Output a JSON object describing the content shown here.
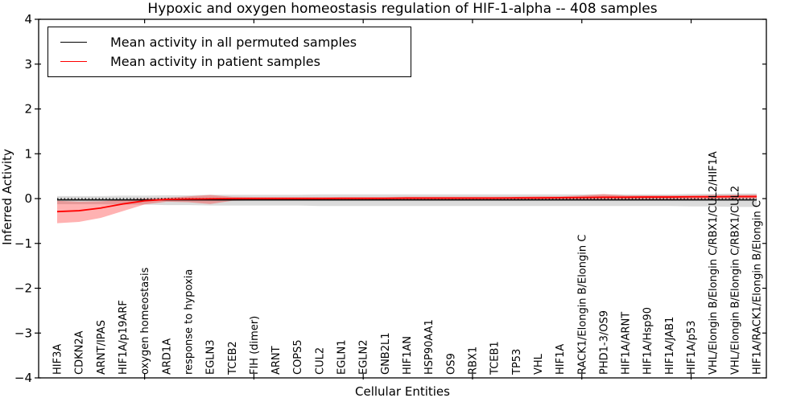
{
  "figure": {
    "title": "Hypoxic and oxygen homeostasis regulation of HIF-1-alpha -- 408 samples",
    "background_color": "#ffffff"
  },
  "legend": {
    "items": [
      {
        "label": "Mean activity in all permuted samples",
        "color": "#000000"
      },
      {
        "label": "Mean activity in patient samples",
        "color": "#ff0000"
      }
    ]
  },
  "chart_data": {
    "type": "line",
    "title": "Hypoxic and oxygen homeostasis regulation of HIF-1-alpha -- 408 samples",
    "xlabel": "Cellular Entities",
    "ylabel": "Inferred Activity",
    "ylim": [
      -4,
      4
    ],
    "ytick_values": [
      4,
      3,
      2,
      1,
      0,
      -1,
      -2,
      -3,
      -4
    ],
    "xtick_entity_numbers": [
      5,
      10,
      15,
      20,
      25,
      30
    ],
    "grid": false,
    "legend_position": "upper left",
    "zero_line": {
      "style": "dotted",
      "color": "#000000",
      "y": 0
    },
    "categories": [
      "HIF3A",
      "CDKN2A",
      "ARNT/IPAS",
      "HIF1A/p19ARF",
      "oxygen homeostasis",
      "ARD1A",
      "response to hypoxia",
      "EGLN3",
      "TCEB2",
      "FIH (dimer)",
      "ARNT",
      "COPS5",
      "CUL2",
      "EGLN1",
      "EGLN2",
      "GNB2L1",
      "HIF1AN",
      "HSP90AA1",
      "OS9",
      "RBX1",
      "TCEB1",
      "TP53",
      "VHL",
      "HIF1A",
      "RACK1/Elongin B/Elongin C",
      "PHD1-3/OS9",
      "HIF1A/ARNT",
      "HIF1A/Hsp90",
      "HIF1A/JAB1",
      "HIF1A/p53",
      "VHL/Elongin B/Elongin C/RBX1/CUL2/HIF1A",
      "VHL/Elongin B/Elongin C/RBX1/CUL2",
      "HIF1A/RACK1/Elongin B/Elongin C"
    ],
    "series": [
      {
        "name": "Mean activity in all permuted samples",
        "color": "#000000",
        "band_color": "rgba(0,0,0,0.14)",
        "values": [
          -0.03,
          -0.03,
          -0.03,
          -0.03,
          -0.03,
          -0.03,
          -0.03,
          -0.03,
          -0.03,
          -0.03,
          -0.03,
          -0.03,
          -0.03,
          -0.03,
          -0.03,
          -0.03,
          -0.03,
          -0.03,
          -0.03,
          -0.03,
          -0.03,
          -0.03,
          -0.03,
          -0.03,
          -0.03,
          -0.03,
          -0.03,
          -0.03,
          -0.03,
          -0.03,
          -0.03,
          -0.03,
          -0.03
        ],
        "band_lo": [
          -0.125,
          -0.125,
          -0.125,
          -0.135,
          -0.135,
          -0.145,
          -0.145,
          -0.155,
          -0.155,
          -0.155,
          -0.155,
          -0.155,
          -0.165,
          -0.165,
          -0.165,
          -0.165,
          -0.165,
          -0.165,
          -0.165,
          -0.165,
          -0.165,
          -0.165,
          -0.165,
          -0.165,
          -0.165,
          -0.165,
          -0.165,
          -0.165,
          -0.165,
          -0.175,
          -0.175,
          -0.185,
          -0.185
        ],
        "band_hi": [
          0.055,
          0.055,
          0.055,
          0.065,
          0.065,
          0.075,
          0.075,
          0.085,
          0.085,
          0.085,
          0.085,
          0.085,
          0.095,
          0.095,
          0.095,
          0.095,
          0.095,
          0.095,
          0.095,
          0.095,
          0.095,
          0.095,
          0.095,
          0.095,
          0.095,
          0.095,
          0.095,
          0.095,
          0.095,
          0.105,
          0.105,
          0.115,
          0.115
        ]
      },
      {
        "name": "Mean activity in patient samples",
        "color": "#ff0000",
        "band_color": "rgba(255,0,0,0.30)",
        "values": [
          -0.29,
          -0.27,
          -0.21,
          -0.12,
          -0.05,
          -0.02,
          -0.01,
          -0.005,
          0.0,
          0.0,
          0.0,
          0.0,
          0.0,
          0.005,
          0.005,
          0.005,
          0.01,
          0.01,
          0.01,
          0.01,
          0.01,
          0.015,
          0.015,
          0.02,
          0.025,
          0.03,
          0.03,
          0.035,
          0.035,
          0.04,
          0.04,
          0.045,
          0.045
        ],
        "band_lo": [
          -0.55,
          -0.52,
          -0.43,
          -0.28,
          -0.13,
          -0.07,
          -0.08,
          -0.12,
          -0.05,
          -0.04,
          -0.04,
          -0.04,
          -0.04,
          -0.04,
          -0.04,
          -0.04,
          -0.04,
          -0.04,
          -0.04,
          -0.04,
          -0.04,
          -0.04,
          -0.03,
          -0.03,
          -0.03,
          -0.03,
          -0.02,
          -0.02,
          -0.02,
          -0.02,
          -0.01,
          -0.005,
          0.0
        ],
        "band_hi": [
          -0.05,
          -0.07,
          -0.06,
          -0.03,
          0.0,
          0.02,
          0.05,
          0.08,
          0.04,
          0.035,
          0.035,
          0.035,
          0.035,
          0.035,
          0.035,
          0.035,
          0.04,
          0.04,
          0.04,
          0.04,
          0.04,
          0.04,
          0.05,
          0.05,
          0.07,
          0.1,
          0.07,
          0.07,
          0.07,
          0.07,
          0.08,
          0.08,
          0.09
        ]
      }
    ]
  }
}
